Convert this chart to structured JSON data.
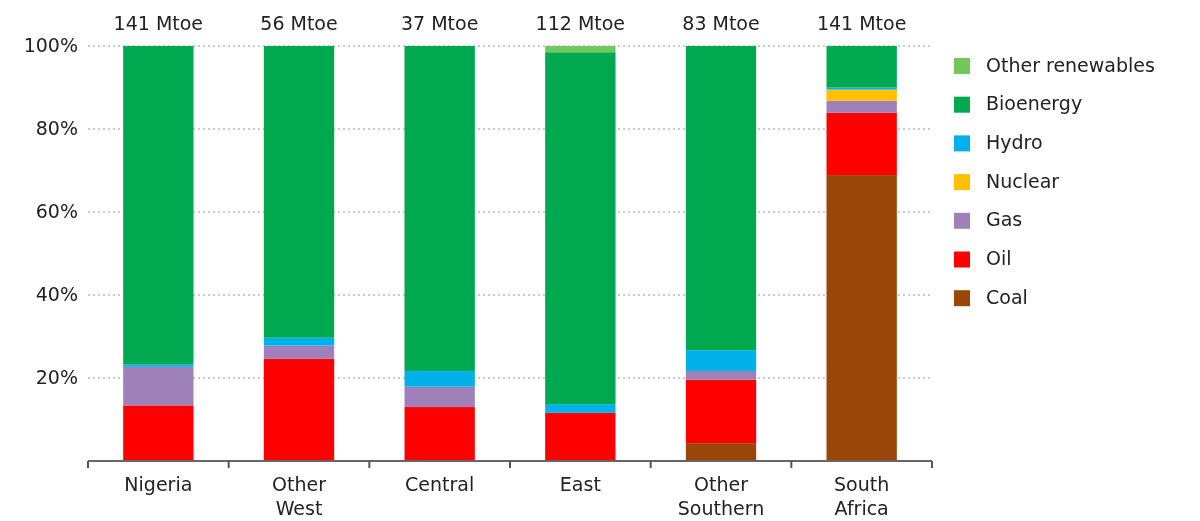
{
  "chart_data": {
    "type": "bar",
    "stacked": true,
    "categories": [
      "Nigeria",
      "Other West",
      "Central",
      "East",
      "Other Southern",
      "South Africa"
    ],
    "series": [
      {
        "name": "Coal",
        "color": "#9a4609",
        "values": [
          0,
          0,
          0,
          0,
          4.3,
          68.9
        ]
      },
      {
        "name": "Oil",
        "color": "#ff0000",
        "values": [
          13.4,
          24.6,
          13.0,
          11.6,
          15.3,
          15.0
        ]
      },
      {
        "name": "Gas",
        "color": "#a080b8",
        "values": [
          9.3,
          3.2,
          4.9,
          0,
          2.1,
          2.9
        ]
      },
      {
        "name": "Nuclear",
        "color": "#ffc000",
        "values": [
          0,
          0,
          0,
          0,
          0,
          2.7
        ]
      },
      {
        "name": "Hydro",
        "color": "#00b0e8",
        "values": [
          0.6,
          1.9,
          3.8,
          2.1,
          5.0,
          0.5
        ]
      },
      {
        "name": "Bioenergy",
        "color": "#00a84f",
        "values": [
          76.7,
          70.3,
          78.3,
          84.8,
          73.3,
          10.0
        ]
      },
      {
        "name": "Other renewables",
        "color": "#70c95a",
        "values": [
          0,
          0,
          0,
          1.5,
          0,
          0
        ]
      }
    ],
    "annotations": [
      {
        "text": "141 Mtoe",
        "x": "Nigeria",
        "y": 100
      },
      {
        "text": "56 Mtoe",
        "x": "Other West",
        "y": 100
      },
      {
        "text": "37 Mtoe",
        "x": "Central",
        "y": 100
      },
      {
        "text": "112 Mtoe",
        "x": "East",
        "y": 100
      },
      {
        "text": "83 Mtoe",
        "x": "Other Southern",
        "y": 100
      },
      {
        "text": "141 Mtoe",
        "x": "South Africa",
        "y": 100
      }
    ],
    "ylim": [
      0,
      100
    ],
    "yticks": [
      {
        "value": 20,
        "label": "20%"
      },
      {
        "value": 40,
        "label": "40%"
      },
      {
        "value": 60,
        "label": "60%"
      },
      {
        "value": 80,
        "label": "80%"
      },
      {
        "value": 100,
        "label": "100%"
      }
    ],
    "grid": "y",
    "legend": "right"
  }
}
